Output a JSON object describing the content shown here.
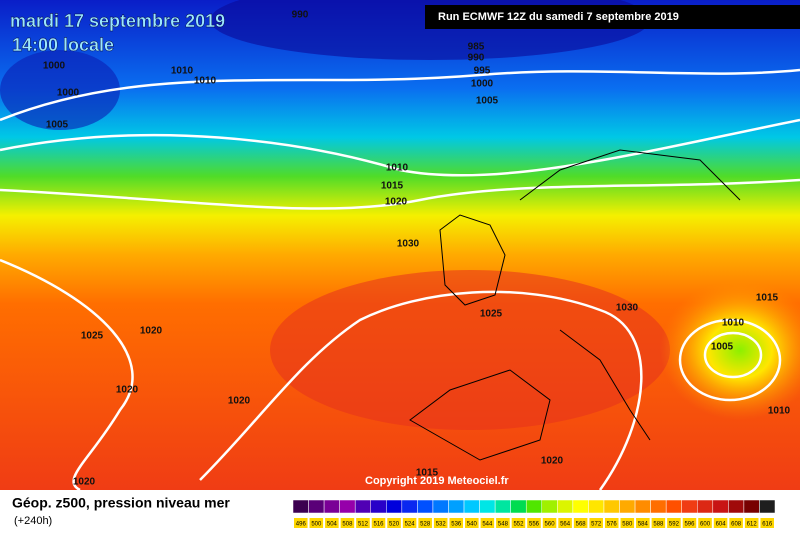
{
  "header": {
    "date": "mardi 17 septembre 2019",
    "time": "14:00 locale",
    "run": "Run ECMWF 12Z du samedi 7 septembre 2019"
  },
  "isobar_labels": [
    "990",
    "985",
    "990",
    "995",
    "1000",
    "1005",
    "1010",
    "1010",
    "1000",
    "1000",
    "1005",
    "1010",
    "1015",
    "1020",
    "1030",
    "1025",
    "1020",
    "1020",
    "1020",
    "1025",
    "1030",
    "1015",
    "1010",
    "1005",
    "1010",
    "1020",
    "1015",
    "1020"
  ],
  "copyright": "Copyright 2019 Meteociel.fr",
  "legend": {
    "title": "Géop. z500, pression niveau mer",
    "lead": "(+240h)",
    "scale": [
      496,
      500,
      504,
      508,
      512,
      516,
      520,
      524,
      528,
      532,
      536,
      540,
      544,
      548,
      552,
      556,
      560,
      564,
      568,
      572,
      576,
      580,
      584,
      588,
      592,
      596,
      600,
      604,
      608,
      612,
      616
    ],
    "colors": [
      "#3c0050",
      "#5a0078",
      "#7a0096",
      "#9600aa",
      "#5000b4",
      "#2800c8",
      "#0000dc",
      "#0a28f0",
      "#0050ff",
      "#0078ff",
      "#00a0ff",
      "#00c8ff",
      "#00e6e6",
      "#00e6a0",
      "#00dc50",
      "#50e600",
      "#a0f000",
      "#dcf500",
      "#ffff00",
      "#ffe600",
      "#ffc800",
      "#ffaa00",
      "#ff8c00",
      "#ff6e00",
      "#ff5000",
      "#f03c14",
      "#dc2814",
      "#c81414",
      "#a00a0a",
      "#780000",
      "#1e1e1e"
    ]
  }
}
